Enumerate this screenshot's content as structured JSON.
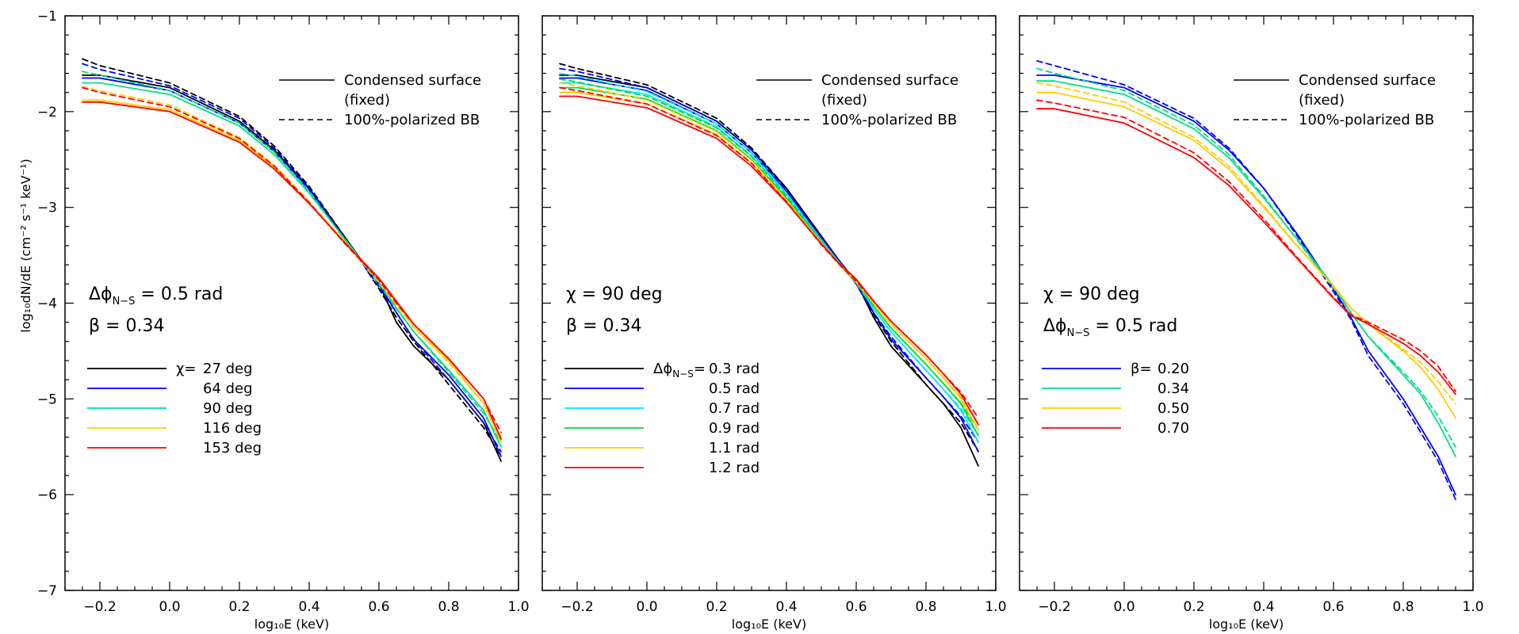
{
  "figure": {
    "y_axis_label": "log₁₀dN/dE (cm⁻² s⁻¹ keV⁻¹)",
    "x_axis_label": "log₁₀E (keV)"
  },
  "chart_data": [
    {
      "type": "line",
      "xlabel": "log₁₀E (keV)",
      "ylabel": "log₁₀dN/dE (cm⁻² s⁻¹ keV⁻¹)",
      "xlim": [
        -0.3,
        1.0
      ],
      "ylim": [
        -7,
        -1
      ],
      "xticks": [
        -0.2,
        0.0,
        0.2,
        0.4,
        0.6,
        0.8,
        1.0
      ],
      "xtick_labels": [
        "−0.2",
        "0.0",
        "0.2",
        "0.4",
        "0.6",
        "0.8",
        "1.0"
      ],
      "yticks": [
        -7,
        -6,
        -5,
        -4,
        -3,
        -2,
        -1
      ],
      "ytick_labels": [
        "−7",
        "−6",
        "−5",
        "−4",
        "−3",
        "−2",
        "−1"
      ],
      "style_legend": {
        "solid": "Condensed surface",
        "solid_line2": "(fixed)",
        "dashed": "100%-polarized BB"
      },
      "annotations": [
        "Δϕ",
        "N−S",
        " =  0.5 rad",
        "β =  0.34"
      ],
      "legend_title": "χ=",
      "series": [
        {
          "name": "27 deg",
          "color": "#000000",
          "x": [
            -0.25,
            -0.2,
            0.0,
            0.2,
            0.3,
            0.4,
            0.5,
            0.55,
            0.6,
            0.65,
            0.7,
            0.8,
            0.9,
            0.95
          ],
          "solid": [
            -1.62,
            -1.62,
            -1.75,
            -2.1,
            -2.4,
            -2.8,
            -3.3,
            -3.55,
            -3.8,
            -4.2,
            -4.45,
            -4.8,
            -5.25,
            -5.65
          ],
          "dashed": [
            -1.45,
            -1.52,
            -1.7,
            -2.05,
            -2.36,
            -2.78,
            -3.3,
            -3.57,
            -3.85,
            -4.15,
            -4.4,
            -4.85,
            -5.3,
            -5.6
          ]
        },
        {
          "name": "64 deg",
          "color": "#0000ff",
          "x": [
            -0.25,
            -0.2,
            0.0,
            0.2,
            0.3,
            0.4,
            0.5,
            0.55,
            0.6,
            0.65,
            0.7,
            0.8,
            0.9,
            0.95
          ],
          "solid": [
            -1.65,
            -1.65,
            -1.78,
            -2.12,
            -2.42,
            -2.82,
            -3.32,
            -3.55,
            -3.8,
            -4.1,
            -4.38,
            -4.75,
            -5.2,
            -5.6
          ],
          "dashed": [
            -1.5,
            -1.56,
            -1.73,
            -2.07,
            -2.38,
            -2.8,
            -3.32,
            -3.57,
            -3.83,
            -4.1,
            -4.38,
            -4.8,
            -5.25,
            -5.55
          ]
        },
        {
          "name": "90 deg",
          "color": "#00dd88",
          "x": [
            -0.25,
            -0.2,
            0.0,
            0.2,
            0.3,
            0.4,
            0.5,
            0.55,
            0.6,
            0.65,
            0.7,
            0.8,
            0.9,
            0.95
          ],
          "solid": [
            -1.7,
            -1.7,
            -1.82,
            -2.15,
            -2.45,
            -2.85,
            -3.32,
            -3.55,
            -3.78,
            -4.05,
            -4.3,
            -4.7,
            -5.12,
            -5.5
          ],
          "dashed": [
            -1.58,
            -1.62,
            -1.78,
            -2.12,
            -2.42,
            -2.83,
            -3.33,
            -3.57,
            -3.8,
            -4.06,
            -4.3,
            -4.72,
            -5.15,
            -5.45
          ]
        },
        {
          "name": "116 deg",
          "color": "#ffcc00",
          "x": [
            -0.25,
            -0.2,
            0.0,
            0.2,
            0.3,
            0.4,
            0.5,
            0.55,
            0.6,
            0.65,
            0.7,
            0.8,
            0.9,
            0.95
          ],
          "solid": [
            -1.88,
            -1.88,
            -1.98,
            -2.3,
            -2.58,
            -2.95,
            -3.35,
            -3.55,
            -3.75,
            -4.0,
            -4.25,
            -4.6,
            -5.05,
            -5.45
          ],
          "dashed": [
            -1.74,
            -1.78,
            -1.93,
            -2.27,
            -2.56,
            -2.94,
            -3.36,
            -3.57,
            -3.78,
            -4.02,
            -4.25,
            -4.62,
            -5.05,
            -5.4
          ]
        },
        {
          "name": "153 deg",
          "color": "#ff0000",
          "x": [
            -0.25,
            -0.2,
            0.0,
            0.2,
            0.3,
            0.4,
            0.5,
            0.55,
            0.6,
            0.65,
            0.7,
            0.8,
            0.9,
            0.95
          ],
          "solid": [
            -1.9,
            -1.9,
            -2.0,
            -2.32,
            -2.6,
            -2.96,
            -3.36,
            -3.55,
            -3.74,
            -3.98,
            -4.22,
            -4.58,
            -5.0,
            -5.42
          ],
          "dashed": [
            -1.75,
            -1.8,
            -1.95,
            -2.28,
            -2.57,
            -2.95,
            -3.37,
            -3.56,
            -3.76,
            -4.0,
            -4.22,
            -4.58,
            -5.0,
            -5.35
          ]
        }
      ]
    },
    {
      "type": "line",
      "xlabel": "log₁₀E (keV)",
      "xlim": [
        -0.3,
        1.0
      ],
      "ylim": [
        -7,
        -1
      ],
      "xticks": [
        -0.2,
        0.0,
        0.2,
        0.4,
        0.6,
        0.8,
        1.0
      ],
      "xtick_labels": [
        "−0.2",
        "0.0",
        "0.2",
        "0.4",
        "0.6",
        "0.8",
        "1.0"
      ],
      "style_legend": {
        "solid": "Condensed surface",
        "solid_line2": "(fixed)",
        "dashed": "100%-polarized BB"
      },
      "annotations": [
        "χ =    90 deg",
        "β =  0.34"
      ],
      "legend_title": "Δϕ",
      "legend_title_sub": "N−S",
      "legend_title_suffix": "=",
      "series": [
        {
          "name": "0.3 rad",
          "color": "#000000",
          "x": [
            -0.25,
            -0.2,
            0.0,
            0.2,
            0.3,
            0.4,
            0.5,
            0.55,
            0.6,
            0.65,
            0.7,
            0.8,
            0.85,
            0.9,
            0.95
          ],
          "solid": [
            -1.62,
            -1.62,
            -1.75,
            -2.1,
            -2.4,
            -2.8,
            -3.3,
            -3.55,
            -3.78,
            -4.15,
            -4.45,
            -4.85,
            -5.05,
            -5.3,
            -5.7
          ],
          "dashed": [
            -1.5,
            -1.55,
            -1.72,
            -2.07,
            -2.38,
            -2.8,
            -3.3,
            -3.56,
            -3.8,
            -4.12,
            -4.4,
            -4.85,
            -5.05,
            -5.25,
            -5.55
          ]
        },
        {
          "name": "0.5 rad",
          "color": "#0000ff",
          "x": [
            -0.25,
            -0.2,
            0.0,
            0.2,
            0.3,
            0.4,
            0.5,
            0.55,
            0.6,
            0.65,
            0.7,
            0.8,
            0.85,
            0.9,
            0.95
          ],
          "solid": [
            -1.65,
            -1.65,
            -1.78,
            -2.13,
            -2.43,
            -2.83,
            -3.32,
            -3.56,
            -3.78,
            -4.1,
            -4.38,
            -4.78,
            -4.98,
            -5.2,
            -5.55
          ],
          "dashed": [
            -1.55,
            -1.58,
            -1.75,
            -2.1,
            -2.4,
            -2.82,
            -3.32,
            -3.57,
            -3.8,
            -4.1,
            -4.35,
            -4.78,
            -4.98,
            -5.18,
            -5.45
          ]
        },
        {
          "name": "0.7 rad",
          "color": "#00e5ff",
          "x": [
            -0.25,
            -0.2,
            0.0,
            0.2,
            0.3,
            0.4,
            0.5,
            0.55,
            0.6,
            0.65,
            0.7,
            0.8,
            0.85,
            0.9,
            0.95
          ],
          "solid": [
            -1.7,
            -1.7,
            -1.82,
            -2.16,
            -2.46,
            -2.86,
            -3.34,
            -3.57,
            -3.77,
            -4.06,
            -4.3,
            -4.7,
            -4.9,
            -5.12,
            -5.45
          ],
          "dashed": [
            -1.6,
            -1.63,
            -1.79,
            -2.13,
            -2.43,
            -2.85,
            -3.34,
            -3.58,
            -3.79,
            -4.06,
            -4.3,
            -4.7,
            -4.9,
            -5.1,
            -5.38
          ]
        },
        {
          "name": "0.9 rad",
          "color": "#00dd33",
          "x": [
            -0.25,
            -0.2,
            0.0,
            0.2,
            0.3,
            0.4,
            0.5,
            0.55,
            0.6,
            0.65,
            0.7,
            0.8,
            0.85,
            0.9,
            0.95
          ],
          "solid": [
            -1.75,
            -1.75,
            -1.87,
            -2.2,
            -2.5,
            -2.9,
            -3.36,
            -3.58,
            -3.77,
            -4.03,
            -4.26,
            -4.64,
            -4.84,
            -5.05,
            -5.38
          ],
          "dashed": [
            -1.66,
            -1.69,
            -1.84,
            -2.17,
            -2.47,
            -2.88,
            -3.36,
            -3.59,
            -3.79,
            -4.03,
            -4.26,
            -4.64,
            -4.84,
            -5.04,
            -5.32
          ]
        },
        {
          "name": "1.1 rad",
          "color": "#ffcc00",
          "x": [
            -0.25,
            -0.2,
            0.0,
            0.2,
            0.3,
            0.4,
            0.5,
            0.55,
            0.6,
            0.65,
            0.7,
            0.8,
            0.85,
            0.9,
            0.95
          ],
          "solid": [
            -1.8,
            -1.8,
            -1.92,
            -2.24,
            -2.54,
            -2.93,
            -3.37,
            -3.58,
            -3.76,
            -4.0,
            -4.22,
            -4.58,
            -4.78,
            -5.0,
            -5.32
          ],
          "dashed": [
            -1.7,
            -1.73,
            -1.88,
            -2.21,
            -2.51,
            -2.92,
            -3.38,
            -3.59,
            -3.78,
            -4.0,
            -4.22,
            -4.58,
            -4.78,
            -4.98,
            -5.26
          ]
        },
        {
          "name": "1.2 rad",
          "color": "#ff0000",
          "x": [
            -0.25,
            -0.2,
            0.0,
            0.2,
            0.3,
            0.4,
            0.5,
            0.55,
            0.6,
            0.65,
            0.7,
            0.8,
            0.85,
            0.9,
            0.95
          ],
          "solid": [
            -1.84,
            -1.84,
            -1.96,
            -2.28,
            -2.57,
            -2.95,
            -3.38,
            -3.58,
            -3.75,
            -3.98,
            -4.19,
            -4.54,
            -4.74,
            -4.95,
            -5.27
          ],
          "dashed": [
            -1.75,
            -1.78,
            -1.92,
            -2.25,
            -2.54,
            -2.94,
            -3.39,
            -3.59,
            -3.77,
            -3.98,
            -4.19,
            -4.54,
            -4.74,
            -4.93,
            -5.2
          ]
        }
      ]
    },
    {
      "type": "line",
      "xlabel": "log₁₀E (keV)",
      "xlim": [
        -0.3,
        1.0
      ],
      "ylim": [
        -7,
        -1
      ],
      "xticks": [
        -0.2,
        0.0,
        0.2,
        0.4,
        0.6,
        0.8,
        1.0
      ],
      "xtick_labels": [
        "−0.2",
        "0.0",
        "0.2",
        "0.4",
        "0.6",
        "0.8",
        "1.0"
      ],
      "style_legend": {
        "solid": "Condensed surface",
        "solid_line2": "(fixed)",
        "dashed": "100%-polarized BB"
      },
      "annotations": [
        "χ =    90 deg",
        "Δϕ",
        "N−S",
        " =  0.5 rad"
      ],
      "legend_title": "β=",
      "series": [
        {
          "name": "0.20",
          "color": "#0000ff",
          "x": [
            -0.25,
            -0.2,
            0.0,
            0.2,
            0.3,
            0.4,
            0.5,
            0.6,
            0.65,
            0.7,
            0.8,
            0.85,
            0.9,
            0.95
          ],
          "solid": [
            -1.62,
            -1.62,
            -1.75,
            -2.1,
            -2.4,
            -2.8,
            -3.3,
            -3.85,
            -4.15,
            -4.5,
            -5.0,
            -5.3,
            -5.6,
            -6.0
          ],
          "dashed": [
            -1.47,
            -1.52,
            -1.72,
            -2.07,
            -2.38,
            -2.8,
            -3.32,
            -3.88,
            -4.17,
            -4.55,
            -5.05,
            -5.35,
            -5.65,
            -6.05
          ]
        },
        {
          "name": "0.34",
          "color": "#00dd88",
          "x": [
            -0.25,
            -0.2,
            0.0,
            0.2,
            0.3,
            0.4,
            0.5,
            0.6,
            0.65,
            0.7,
            0.8,
            0.85,
            0.9,
            0.95
          ],
          "solid": [
            -1.68,
            -1.68,
            -1.82,
            -2.18,
            -2.48,
            -2.9,
            -3.35,
            -3.82,
            -4.1,
            -4.35,
            -4.75,
            -4.95,
            -5.25,
            -5.6
          ],
          "dashed": [
            -1.55,
            -1.6,
            -1.78,
            -2.14,
            -2.45,
            -2.88,
            -3.36,
            -3.84,
            -4.1,
            -4.35,
            -4.72,
            -4.92,
            -5.18,
            -5.5
          ]
        },
        {
          "name": "0.50",
          "color": "#ffcc00",
          "x": [
            -0.25,
            -0.2,
            0.0,
            0.2,
            0.3,
            0.4,
            0.5,
            0.6,
            0.65,
            0.7,
            0.8,
            0.85,
            0.9,
            0.95
          ],
          "solid": [
            -1.8,
            -1.8,
            -1.95,
            -2.3,
            -2.6,
            -3.0,
            -3.42,
            -3.82,
            -4.05,
            -4.22,
            -4.5,
            -4.67,
            -4.9,
            -5.2
          ],
          "dashed": [
            -1.7,
            -1.73,
            -1.9,
            -2.27,
            -2.57,
            -2.98,
            -3.42,
            -3.83,
            -4.05,
            -4.22,
            -4.48,
            -4.62,
            -4.82,
            -5.05
          ]
        },
        {
          "name": "0.70",
          "color": "#ff0000",
          "x": [
            -0.25,
            -0.2,
            0.0,
            0.2,
            0.3,
            0.4,
            0.5,
            0.6,
            0.65,
            0.7,
            0.8,
            0.85,
            0.9,
            0.95
          ],
          "solid": [
            -1.97,
            -1.97,
            -2.12,
            -2.48,
            -2.77,
            -3.15,
            -3.55,
            -3.95,
            -4.13,
            -4.22,
            -4.42,
            -4.55,
            -4.72,
            -4.95
          ],
          "dashed": [
            -1.88,
            -1.91,
            -2.06,
            -2.43,
            -2.73,
            -3.12,
            -3.54,
            -3.94,
            -4.12,
            -4.2,
            -4.38,
            -4.5,
            -4.66,
            -4.92
          ]
        }
      ]
    }
  ]
}
